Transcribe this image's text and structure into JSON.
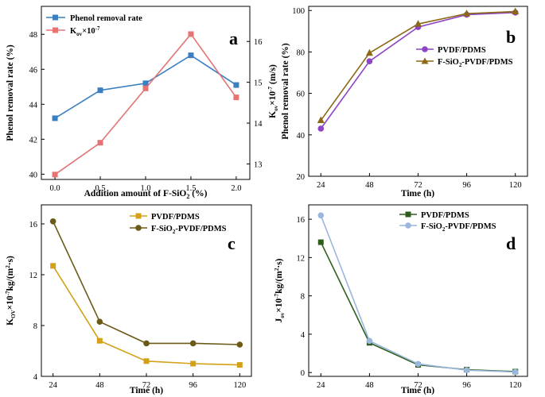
{
  "chart_data": [
    {
      "panel": "a",
      "type": "line",
      "xlabel": "Addition amount of F-SiO₂ (%)",
      "ylabel": "Phenol removal rate (%)",
      "y2label": "K_ov×10^-7",
      "x": [
        0.0,
        0.5,
        1.0,
        1.5,
        2.0
      ],
      "x_ticks": [
        "0.0",
        "0.5",
        "1.0",
        "1.5",
        "2.0"
      ],
      "xlim": [
        -0.15,
        2.15
      ],
      "ylim": [
        39.7,
        49.6
      ],
      "y_ticks": [
        40,
        42,
        44,
        46,
        48
      ],
      "y2lim": [
        12.62,
        16.86
      ],
      "y2_ticks": [
        13,
        14,
        15,
        16
      ],
      "legend": "top-left",
      "series": [
        {
          "name": "Phenol removal rate",
          "axis": "left",
          "values": [
            43.2,
            44.8,
            45.2,
            46.8,
            45.1
          ],
          "color": "#3a7fc1",
          "marker": "square"
        },
        {
          "name": "K_ov×10^-7",
          "axis": "right",
          "values": [
            12.74,
            13.52,
            14.85,
            16.18,
            14.63
          ],
          "color": "#e57373",
          "marker": "square"
        }
      ]
    },
    {
      "panel": "b",
      "type": "line",
      "xlabel": "Time (h)",
      "ylabel": "Phenol removal rate (%)",
      "ylabel_top": "K_ov×10^-7 (m/s)",
      "x": [
        24,
        48,
        72,
        96,
        120
      ],
      "x_ticks": [
        "24",
        "48",
        "72",
        "96",
        "120"
      ],
      "xlim": [
        18,
        126
      ],
      "ylim": [
        20,
        102
      ],
      "y_ticks": [
        20,
        40,
        60,
        80,
        100
      ],
      "legend": "right",
      "series": [
        {
          "name": "PVDF/PDMS",
          "values": [
            43.0,
            75.5,
            92.0,
            98.0,
            99.0
          ],
          "color": "#8e44c4",
          "marker": "circle"
        },
        {
          "name": "F-SiO₂-PVDF/PDMS",
          "values": [
            47.0,
            79.5,
            93.5,
            98.5,
            99.5
          ],
          "color": "#8b6914",
          "marker": "triangle"
        }
      ]
    },
    {
      "panel": "c",
      "type": "line",
      "xlabel": "Time (h)",
      "ylabel": "K_OV×10^-7 kg/(m²·s)",
      "x": [
        24,
        48,
        72,
        96,
        120
      ],
      "x_ticks": [
        "24",
        "48",
        "72",
        "96",
        "120"
      ],
      "xlim": [
        18,
        126
      ],
      "ylim": [
        4,
        17.5
      ],
      "y_ticks": [
        4,
        8,
        12,
        16
      ],
      "legend": "top-right",
      "series": [
        {
          "name": "PVDF/PDMS",
          "values": [
            12.7,
            6.8,
            5.2,
            5.0,
            4.9
          ],
          "color": "#d4a017",
          "marker": "square"
        },
        {
          "name": "F-SiO₂-PVDF/PDMS",
          "values": [
            16.2,
            8.3,
            6.6,
            6.6,
            6.5
          ],
          "color": "#6b5a17",
          "marker": "circle"
        }
      ]
    },
    {
      "panel": "d",
      "type": "line",
      "xlabel": "Time (h)",
      "ylabel": "J_ov×10^-7 kg/(m²·s)",
      "x": [
        24,
        48,
        72,
        96,
        120
      ],
      "x_ticks": [
        "24",
        "48",
        "72",
        "96",
        "120"
      ],
      "xlim": [
        18,
        126
      ],
      "ylim": [
        -0.4,
        17.5
      ],
      "y_ticks": [
        0,
        4,
        8,
        12,
        16
      ],
      "legend": "top-right",
      "series": [
        {
          "name": "PVDF/PDMS",
          "values": [
            13.6,
            3.1,
            0.8,
            0.3,
            0.1
          ],
          "color": "#2e5e1e",
          "marker": "square"
        },
        {
          "name": "F-SiO₂-PVDF/PDMS",
          "values": [
            16.4,
            3.3,
            0.9,
            0.25,
            0.05
          ],
          "color": "#9ab6dd",
          "marker": "circle"
        }
      ]
    }
  ],
  "panel_a": {
    "letter": "a",
    "legend_1": "Phenol removal rate",
    "legend_2_main": "K",
    "legend_2_sub": "ov",
    "legend_2_tail": "×10",
    "legend_2_sup": "-7",
    "xlabel": "Addition amount of F-SiO",
    "xlabel_sub": "2",
    "xlabel_tail": " (%)",
    "ylabel": "Phenol removal rate (%)"
  },
  "panel_b": {
    "letter": "b",
    "legend_1": "PVDF/PDMS",
    "legend_2_main": "F-SiO",
    "legend_2_sub": "2",
    "legend_2_tail": "-PVDF/PDMS",
    "xlabel": "Time (h)",
    "ylabel_1_main": "K",
    "ylabel_1_sub": "ov",
    "ylabel_1_mid": "×10",
    "ylabel_1_sup": "-7",
    "ylabel_1_tail": " (m/s)",
    "ylabel_2": "Phenol removal rate (%)"
  },
  "panel_c": {
    "letter": "c",
    "legend_1": "PVDF/PDMS",
    "legend_2_main": "F-SiO",
    "legend_2_sub": "2",
    "legend_2_tail": "-PVDF/PDMS",
    "xlabel": "Time (h)",
    "ylabel_main": "K",
    "ylabel_sub": "OV",
    "ylabel_mid": "×10",
    "ylabel_sup": "-7",
    "ylabel_tail": "kg/(m",
    "ylabel_sup2": "2",
    "ylabel_end": "·s)"
  },
  "panel_d": {
    "letter": "d",
    "legend_1": "PVDF/PDMS",
    "legend_2_main": "F-SiO",
    "legend_2_sub": "2",
    "legend_2_tail": "-PVDF/PDMS",
    "xlabel": "Time (h)",
    "ylabel_main": "J",
    "ylabel_sub": "ov",
    "ylabel_mid": "×10",
    "ylabel_sup": "-7",
    "ylabel_tail": "kg/(m",
    "ylabel_sup2": "2",
    "ylabel_end": "·s)"
  }
}
